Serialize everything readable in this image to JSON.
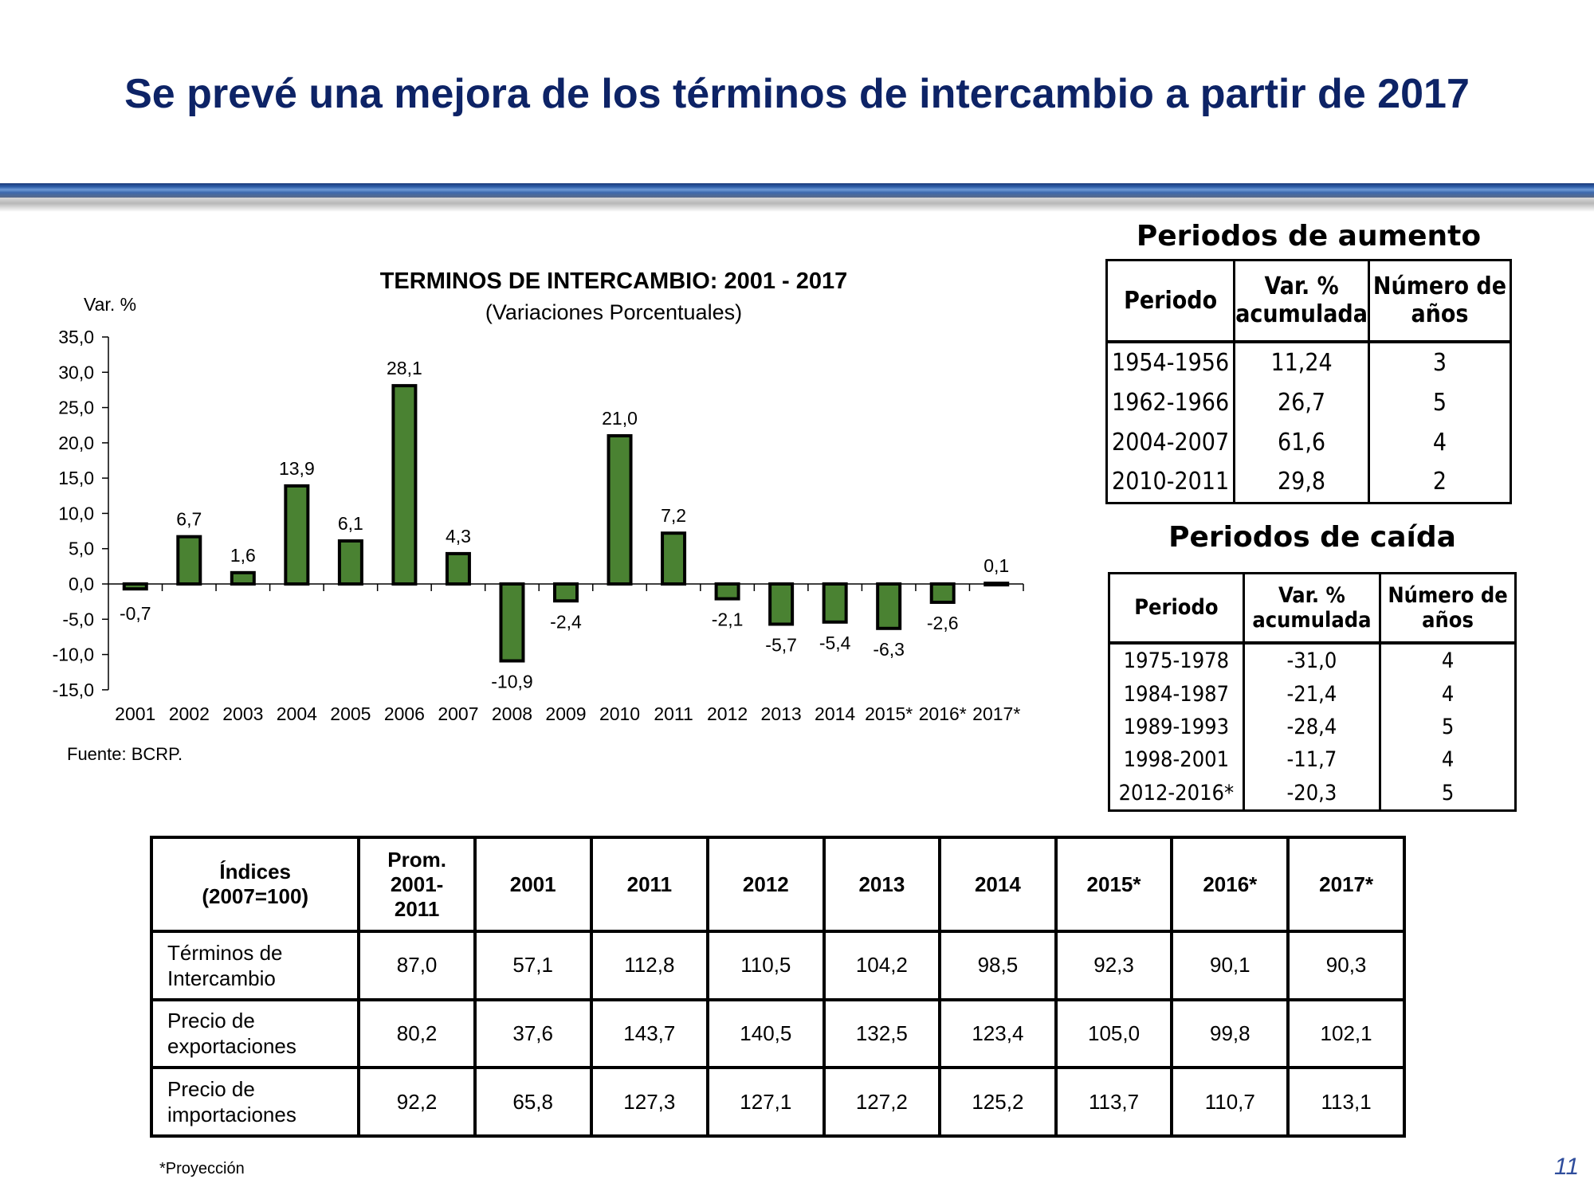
{
  "slide": {
    "title": "Se prevé una mejora de los términos de intercambio a partir de 2017",
    "footnote": "*Proyección",
    "page_number": "11"
  },
  "chart_data": {
    "type": "bar",
    "title": "TERMINOS DE INTERCAMBIO: 2001 -  2017",
    "subtitle": "(Variaciones Porcentuales)",
    "ylabel": "Var. %",
    "xlabel": "",
    "source": "Fuente: BCRP.",
    "ylim": [
      -15,
      35
    ],
    "yticks": [
      35,
      30,
      25,
      20,
      15,
      10,
      5,
      0,
      -5,
      -10,
      -15
    ],
    "ytick_labels": [
      "35,0",
      "30,0",
      "25,0",
      "20,0",
      "15,0",
      "10,0",
      "5,0",
      "0,0",
      "-5,0",
      "-10,0",
      "-15,0"
    ],
    "categories": [
      "2001",
      "2002",
      "2003",
      "2004",
      "2005",
      "2006",
      "2007",
      "2008",
      "2009",
      "2010",
      "2011",
      "2012",
      "2013",
      "2014",
      "2015*",
      "2016*",
      "2017*"
    ],
    "values": [
      -0.7,
      6.7,
      1.6,
      13.9,
      6.1,
      28.1,
      4.3,
      -10.9,
      -2.4,
      21.0,
      7.2,
      -2.1,
      -5.7,
      -5.4,
      -6.3,
      -2.6,
      0.1
    ],
    "value_labels": [
      "-0,7",
      "6,7",
      "1,6",
      "13,9",
      "6,1",
      "28,1",
      "4,3",
      "-10,9",
      "-2,4",
      "21,0",
      "7,2",
      "-2,1",
      "-5,7",
      "-5,4",
      "-6,3",
      "-2,6",
      "0,1"
    ],
    "bar_color": "#4a8232",
    "grid": false,
    "legend": "none"
  },
  "aumento": {
    "title": "Periodos de aumento",
    "headers": [
      "Periodo",
      "Var. %\nacumulada",
      "Número de\naños"
    ],
    "header_lines": [
      [
        "Periodo"
      ],
      [
        "Var. %",
        "acumulada"
      ],
      [
        "Número de",
        "años"
      ]
    ],
    "rows": [
      [
        "1954-1956",
        "11,24",
        "3"
      ],
      [
        "1962-1966",
        "26,7",
        "5"
      ],
      [
        "2004-2007",
        "61,6",
        "4"
      ],
      [
        "2010-2011",
        "29,8",
        "2"
      ]
    ]
  },
  "caida": {
    "title": "Periodos de caída",
    "header_lines": [
      [
        "Periodo"
      ],
      [
        "Var. %",
        "acumulada"
      ],
      [
        "Número de",
        "años"
      ]
    ],
    "rows": [
      [
        "1975-1978",
        "-31,0",
        "4"
      ],
      [
        "1984-1987",
        "-21,4",
        "4"
      ],
      [
        "1989-1993",
        "-28,4",
        "5"
      ],
      [
        "1998-2001",
        "-11,7",
        "4"
      ],
      [
        "2012-2016*",
        "-20,3",
        "5"
      ]
    ]
  },
  "indices": {
    "header_lines": [
      [
        "Índices",
        "(2007=100)"
      ],
      [
        "Prom.",
        "2001-",
        "2011"
      ],
      [
        "2001"
      ],
      [
        "2011"
      ],
      [
        "2012"
      ],
      [
        "2013"
      ],
      [
        "2014"
      ],
      [
        "2015*"
      ],
      [
        "2016*"
      ],
      [
        "2017*"
      ]
    ],
    "rows": [
      {
        "label_lines": [
          "Términos de",
          "Intercambio"
        ],
        "values": [
          "87,0",
          "57,1",
          "112,8",
          "110,5",
          "104,2",
          "98,5",
          "92,3",
          "90,1",
          "90,3"
        ]
      },
      {
        "label_lines": [
          "Precio de",
          "exportaciones"
        ],
        "values": [
          "80,2",
          "37,6",
          "143,7",
          "140,5",
          "132,5",
          "123,4",
          "105,0",
          "99,8",
          "102,1"
        ]
      },
      {
        "label_lines": [
          "Precio de",
          "importaciones"
        ],
        "values": [
          "92,2",
          "65,8",
          "127,3",
          "127,1",
          "127,2",
          "125,2",
          "113,7",
          "110,7",
          "113,1"
        ]
      }
    ]
  }
}
